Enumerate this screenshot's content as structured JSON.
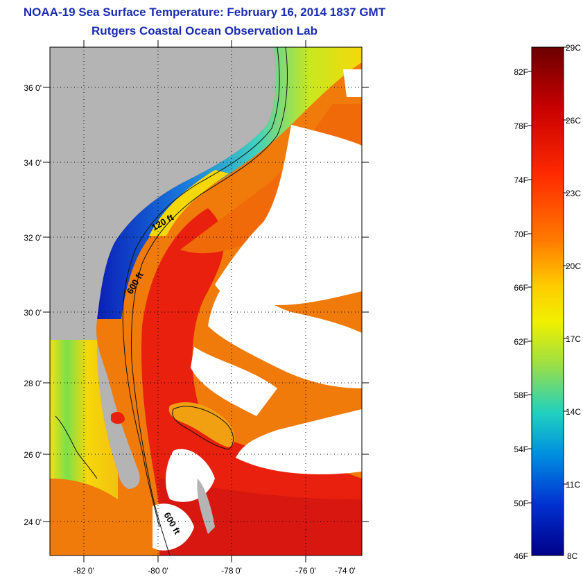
{
  "header": {
    "title": "NOAA-19 Sea Surface Temperature:  February 16, 2014 1837 GMT",
    "subtitle": "Rutgers Coastal Ocean Observation Lab"
  },
  "map": {
    "lat_labels": [
      "36 0'",
      "34 0'",
      "32 0'",
      "30 0'",
      "28 0'",
      "26 0'",
      "24 0'"
    ],
    "lon_labels": [
      "-82 0'",
      "-80 0'",
      "-78 0'",
      "-76 0'",
      "-74 0'"
    ],
    "contour_labels": {
      "c120": "120 ft",
      "c600a": "600 ft",
      "c600b": "600 ft"
    },
    "colors": {
      "land": "#b4b4b4",
      "cloud": "#ffffff",
      "gulfstream": "#e8200d",
      "warm": "#f07a0a",
      "shelf_yellow": "#f5d80a",
      "cold": "#0a1fb8"
    }
  },
  "colorbar": {
    "fahrenheit_labels": [
      "82F",
      "78F",
      "74F",
      "70F",
      "66F",
      "62F",
      "58F",
      "54F",
      "50F",
      "46F"
    ],
    "celsius_labels": [
      "29C",
      "26C",
      "23C",
      "20C",
      "17C",
      "14C",
      "11C",
      "8C"
    ],
    "colors": [
      "#6b0000",
      "#c80000",
      "#ff2a00",
      "#ff7a00",
      "#ffcc00",
      "#f0f000",
      "#a0e040",
      "#20d0c0",
      "#0090e0",
      "#0030d0",
      "#000088"
    ]
  }
}
